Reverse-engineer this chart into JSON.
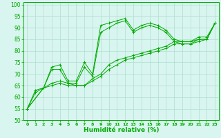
{
  "xlabel": "Humidité relative (%)",
  "background_color": "#d8f5ef",
  "grid_color": "#b0ddd0",
  "line_color": "#00aa00",
  "xlim": [
    -0.5,
    23.5
  ],
  "ylim": [
    50,
    101
  ],
  "xticks": [
    0,
    1,
    2,
    3,
    4,
    5,
    6,
    7,
    8,
    9,
    10,
    11,
    12,
    13,
    14,
    15,
    16,
    17,
    18,
    19,
    20,
    21,
    22,
    23
  ],
  "yticks": [
    50,
    55,
    60,
    65,
    70,
    75,
    80,
    85,
    90,
    95,
    100
  ],
  "series": [
    {
      "x": [
        0,
        1,
        2,
        3,
        4,
        5,
        6,
        7,
        8,
        9,
        10,
        11,
        12,
        13,
        14,
        15,
        16,
        17,
        18,
        19,
        20,
        21,
        22,
        23
      ],
      "y": [
        55,
        63,
        64,
        73,
        74,
        67,
        67,
        75,
        70,
        91,
        92,
        93,
        94,
        89,
        91,
        92,
        91,
        89,
        85,
        84,
        84,
        86,
        86,
        92
      ]
    },
    {
      "x": [
        0,
        1,
        2,
        3,
        4,
        5,
        6,
        7,
        8,
        9,
        10,
        11,
        12,
        13,
        14,
        15,
        16,
        17,
        18,
        19,
        20,
        21,
        22,
        23
      ],
      "y": [
        55,
        62,
        64,
        72,
        72,
        66,
        66,
        73,
        69,
        88,
        90,
        92,
        93,
        88,
        90,
        91,
        90,
        88,
        84,
        83,
        83,
        85,
        85,
        92
      ]
    },
    {
      "x": [
        0,
        2,
        3,
        4,
        5,
        6,
        7,
        8,
        9,
        10,
        11,
        12,
        13,
        14,
        15,
        16,
        17,
        18,
        19,
        20,
        21,
        22,
        23
      ],
      "y": [
        55,
        64,
        66,
        67,
        66,
        65,
        65,
        68,
        70,
        74,
        76,
        77,
        78,
        79,
        80,
        81,
        82,
        84,
        84,
        84,
        85,
        85,
        92
      ]
    },
    {
      "x": [
        0,
        2,
        3,
        4,
        5,
        6,
        7,
        8,
        9,
        10,
        11,
        12,
        13,
        14,
        15,
        16,
        17,
        18,
        19,
        20,
        21,
        22,
        23
      ],
      "y": [
        55,
        64,
        65,
        66,
        65,
        65,
        65,
        67,
        69,
        72,
        74,
        76,
        77,
        78,
        79,
        80,
        81,
        83,
        83,
        83,
        84,
        85,
        92
      ]
    }
  ]
}
